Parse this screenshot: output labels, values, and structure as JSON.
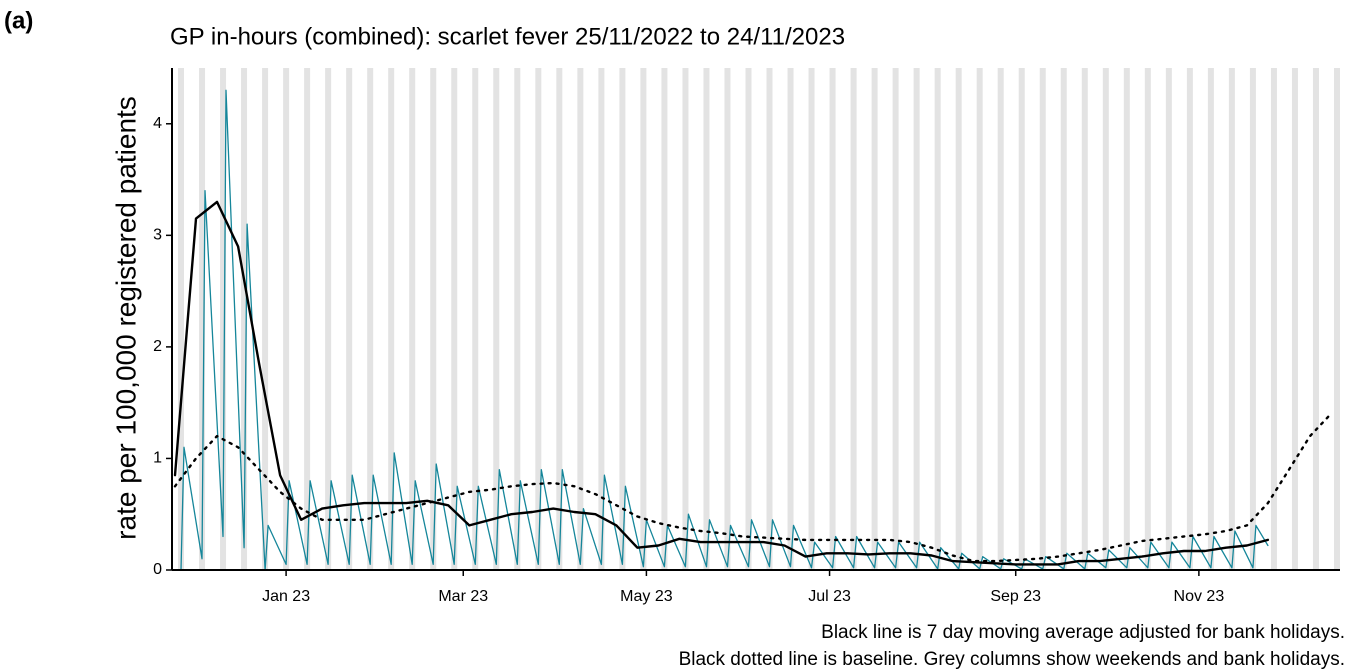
{
  "chart_data": {
    "type": "line",
    "panel_label": "(a)",
    "title": "GP in-hours (combined): scarlet fever 25/11/2022 to 24/11/2023",
    "y_label": "rate per 100,000 registered patients",
    "notes": [
      "Black line is 7 day moving average adjusted for bank holidays.",
      "Black dotted line is baseline. Grey columns show weekends and bank holidays."
    ],
    "xlim": [
      "2022-11-24",
      "2023-12-18"
    ],
    "xticks": [
      {
        "value": "2023-01-01",
        "label": "Jan 23"
      },
      {
        "value": "2023-03-01",
        "label": "Mar 23"
      },
      {
        "value": "2023-05-01",
        "label": "May 23"
      },
      {
        "value": "2023-07-01",
        "label": "Jul 23"
      },
      {
        "value": "2023-09-01",
        "label": "Sep 23"
      },
      {
        "value": "2023-11-01",
        "label": "Nov 23"
      }
    ],
    "ylim": [
      0,
      4.5
    ],
    "yticks": [
      0,
      1,
      2,
      3,
      4
    ],
    "weekend_color": "#e3e3e3",
    "series": [
      {
        "color": "#15869a",
        "style": "solid",
        "width": 1.3,
        "x": [
          "2022-11-25",
          "2022-11-27",
          "2022-11-28",
          "2022-12-04",
          "2022-12-05",
          "2022-12-11",
          "2022-12-12",
          "2022-12-18",
          "2022-12-19",
          "2022-12-25",
          "2022-12-26",
          "2023-01-01",
          "2023-01-02",
          "2023-01-08",
          "2023-01-09",
          "2023-01-15",
          "2023-01-16",
          "2023-01-22",
          "2023-01-23",
          "2023-01-29",
          "2023-01-30",
          "2023-02-05",
          "2023-02-06",
          "2023-02-12",
          "2023-02-13",
          "2023-02-19",
          "2023-02-20",
          "2023-02-26",
          "2023-02-27",
          "2023-03-05",
          "2023-03-06",
          "2023-03-12",
          "2023-03-13",
          "2023-03-19",
          "2023-03-20",
          "2023-03-26",
          "2023-03-27",
          "2023-04-02",
          "2023-04-03",
          "2023-04-09",
          "2023-04-10",
          "2023-04-16",
          "2023-04-17",
          "2023-04-23",
          "2023-04-24",
          "2023-04-30",
          "2023-05-01",
          "2023-05-07",
          "2023-05-08",
          "2023-05-14",
          "2023-05-15",
          "2023-05-21",
          "2023-05-22",
          "2023-05-28",
          "2023-05-29",
          "2023-06-04",
          "2023-06-05",
          "2023-06-11",
          "2023-06-12",
          "2023-06-18",
          "2023-06-19",
          "2023-06-25",
          "2023-06-26",
          "2023-07-02",
          "2023-07-03",
          "2023-07-09",
          "2023-07-10",
          "2023-07-16",
          "2023-07-17",
          "2023-07-23",
          "2023-07-24",
          "2023-07-30",
          "2023-07-31",
          "2023-08-06",
          "2023-08-07",
          "2023-08-13",
          "2023-08-14",
          "2023-08-20",
          "2023-08-21",
          "2023-08-27",
          "2023-08-28",
          "2023-09-03",
          "2023-09-04",
          "2023-09-10",
          "2023-09-11",
          "2023-09-17",
          "2023-09-18",
          "2023-09-24",
          "2023-09-25",
          "2023-10-01",
          "2023-10-02",
          "2023-10-08",
          "2023-10-09",
          "2023-10-15",
          "2023-10-16",
          "2023-10-22",
          "2023-10-23",
          "2023-10-29",
          "2023-10-30",
          "2023-11-05",
          "2023-11-06",
          "2023-11-12",
          "2023-11-13",
          "2023-11-19",
          "2023-11-20",
          "2023-11-24"
        ],
        "values": [
          0.0,
          0.0,
          1.1,
          0.1,
          3.4,
          0.3,
          4.3,
          0.2,
          3.1,
          0.0,
          0.4,
          0.05,
          0.8,
          0.05,
          0.8,
          0.05,
          0.8,
          0.05,
          0.85,
          0.05,
          0.85,
          0.05,
          1.05,
          0.05,
          0.8,
          0.05,
          0.95,
          0.05,
          0.75,
          0.05,
          0.75,
          0.05,
          0.9,
          0.05,
          0.8,
          0.05,
          0.9,
          0.05,
          0.9,
          0.05,
          0.55,
          0.05,
          0.85,
          0.05,
          0.75,
          0.03,
          0.45,
          0.03,
          0.4,
          0.03,
          0.5,
          0.03,
          0.45,
          0.03,
          0.4,
          0.03,
          0.45,
          0.03,
          0.45,
          0.03,
          0.4,
          0.02,
          0.25,
          0.02,
          0.3,
          0.02,
          0.3,
          0.02,
          0.25,
          0.02,
          0.25,
          0.02,
          0.25,
          0.01,
          0.2,
          0.01,
          0.15,
          0.01,
          0.12,
          0.01,
          0.1,
          0.01,
          0.1,
          0.01,
          0.12,
          0.01,
          0.15,
          0.01,
          0.15,
          0.02,
          0.18,
          0.02,
          0.2,
          0.02,
          0.25,
          0.02,
          0.25,
          0.02,
          0.3,
          0.02,
          0.3,
          0.02,
          0.35,
          0.02,
          0.4,
          0.22
        ]
      },
      {
        "color": "#000000",
        "style": "solid",
        "width": 2.4,
        "x": [
          "2022-11-25",
          "2022-12-02",
          "2022-12-09",
          "2022-12-16",
          "2022-12-23",
          "2022-12-30",
          "2023-01-06",
          "2023-01-13",
          "2023-01-20",
          "2023-01-27",
          "2023-02-03",
          "2023-02-10",
          "2023-02-17",
          "2023-02-24",
          "2023-03-03",
          "2023-03-10",
          "2023-03-17",
          "2023-03-24",
          "2023-03-31",
          "2023-04-07",
          "2023-04-14",
          "2023-04-21",
          "2023-04-28",
          "2023-05-05",
          "2023-05-12",
          "2023-05-19",
          "2023-05-26",
          "2023-06-02",
          "2023-06-09",
          "2023-06-16",
          "2023-06-23",
          "2023-06-30",
          "2023-07-07",
          "2023-07-14",
          "2023-07-21",
          "2023-07-28",
          "2023-08-04",
          "2023-08-11",
          "2023-08-18",
          "2023-08-25",
          "2023-09-01",
          "2023-09-08",
          "2023-09-15",
          "2023-09-22",
          "2023-09-29",
          "2023-10-06",
          "2023-10-13",
          "2023-10-20",
          "2023-10-27",
          "2023-11-03",
          "2023-11-10",
          "2023-11-17",
          "2023-11-24"
        ],
        "values": [
          0.85,
          3.15,
          3.3,
          2.9,
          1.85,
          0.85,
          0.45,
          0.55,
          0.58,
          0.6,
          0.6,
          0.6,
          0.62,
          0.58,
          0.4,
          0.45,
          0.5,
          0.52,
          0.55,
          0.52,
          0.5,
          0.4,
          0.2,
          0.22,
          0.28,
          0.25,
          0.25,
          0.25,
          0.25,
          0.22,
          0.12,
          0.15,
          0.15,
          0.14,
          0.15,
          0.15,
          0.13,
          0.08,
          0.07,
          0.06,
          0.05,
          0.05,
          0.05,
          0.08,
          0.08,
          0.1,
          0.12,
          0.15,
          0.17,
          0.17,
          0.2,
          0.22,
          0.27
        ]
      },
      {
        "color": "#000000",
        "style": "dotted",
        "width": 2.4,
        "x": [
          "2022-11-25",
          "2022-12-02",
          "2022-12-09",
          "2022-12-16",
          "2022-12-23",
          "2022-12-30",
          "2023-01-06",
          "2023-01-13",
          "2023-01-20",
          "2023-01-27",
          "2023-02-03",
          "2023-02-10",
          "2023-02-17",
          "2023-02-24",
          "2023-03-03",
          "2023-03-10",
          "2023-03-17",
          "2023-03-24",
          "2023-03-31",
          "2023-04-07",
          "2023-04-14",
          "2023-04-21",
          "2023-04-28",
          "2023-05-05",
          "2023-05-12",
          "2023-05-19",
          "2023-05-26",
          "2023-06-02",
          "2023-06-09",
          "2023-06-16",
          "2023-06-23",
          "2023-06-30",
          "2023-07-07",
          "2023-07-14",
          "2023-07-21",
          "2023-07-28",
          "2023-08-04",
          "2023-08-11",
          "2023-08-18",
          "2023-08-25",
          "2023-09-01",
          "2023-09-08",
          "2023-09-15",
          "2023-09-22",
          "2023-09-29",
          "2023-10-06",
          "2023-10-13",
          "2023-10-20",
          "2023-10-27",
          "2023-11-03",
          "2023-11-10",
          "2023-11-17",
          "2023-11-24",
          "2023-12-01",
          "2023-12-08",
          "2023-12-15"
        ],
        "values": [
          0.75,
          1.0,
          1.2,
          1.1,
          0.9,
          0.7,
          0.55,
          0.45,
          0.45,
          0.45,
          0.5,
          0.55,
          0.6,
          0.65,
          0.7,
          0.72,
          0.75,
          0.77,
          0.78,
          0.75,
          0.68,
          0.58,
          0.48,
          0.42,
          0.38,
          0.35,
          0.33,
          0.3,
          0.29,
          0.28,
          0.27,
          0.27,
          0.27,
          0.27,
          0.27,
          0.25,
          0.2,
          0.13,
          0.08,
          0.08,
          0.09,
          0.1,
          0.12,
          0.15,
          0.18,
          0.22,
          0.26,
          0.28,
          0.3,
          0.32,
          0.35,
          0.4,
          0.6,
          0.9,
          1.2,
          1.4
        ]
      }
    ]
  }
}
